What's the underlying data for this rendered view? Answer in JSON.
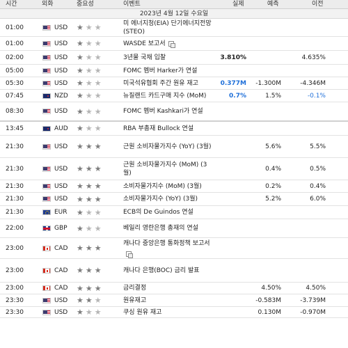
{
  "header": {
    "time": "시간",
    "currency": "외화",
    "importance": "중요성",
    "event": "이벤트",
    "actual": "실제",
    "forecast": "예측",
    "previous": "이전"
  },
  "date_label": "2023년 4월 12일 수요일",
  "rows": [
    {
      "time": "01:00",
      "flag": "us",
      "currency": "USD",
      "stars": 1,
      "event": "미 에너지청(EIA) 단기에너지전망(STEO)",
      "actual": "",
      "actual_color": "black",
      "forecast": "",
      "previous": "",
      "previous_color": "black",
      "h": 26,
      "doc": false,
      "sep": false
    },
    {
      "time": "01:00",
      "flag": "us",
      "currency": "USD",
      "stars": 1,
      "event": "WASDE 보고서",
      "actual": "",
      "actual_color": "black",
      "forecast": "",
      "previous": "",
      "previous_color": "black",
      "h": 20,
      "doc": true,
      "sep": false
    },
    {
      "time": "02:00",
      "flag": "us",
      "currency": "USD",
      "stars": 1,
      "event": "3년물 국채 입찰",
      "actual": "3.810%",
      "actual_color": "black",
      "forecast": "",
      "previous": "4.635%",
      "previous_color": "black",
      "h": 20,
      "doc": false,
      "sep": false
    },
    {
      "time": "05:00",
      "flag": "us",
      "currency": "USD",
      "stars": 1,
      "event": "FOMC 멤버 Harker가 연설",
      "actual": "",
      "actual_color": "black",
      "forecast": "",
      "previous": "",
      "previous_color": "black",
      "h": 18,
      "doc": false,
      "sep": false
    },
    {
      "time": "05:30",
      "flag": "us",
      "currency": "USD",
      "stars": 1,
      "event": "미국석유협회 주간 원유 재고",
      "actual": "0.377M",
      "actual_color": "blue",
      "forecast": "-1.300M",
      "previous": "-4.346M",
      "previous_color": "black",
      "h": 18,
      "doc": false,
      "sep": false
    },
    {
      "time": "07:45",
      "flag": "nz",
      "currency": "NZD",
      "stars": 1,
      "event": "뉴질랜드 카드구매 지수 (MoM)",
      "actual": "0.7%",
      "actual_color": "blue",
      "forecast": "1.5%",
      "previous": "-0.1%",
      "previous_color": "blue",
      "h": 18,
      "doc": false,
      "sep": false
    },
    {
      "time": "08:30",
      "flag": "us",
      "currency": "USD",
      "stars": 1,
      "event": "FOMC 멤버 Kashkari가 연설",
      "actual": "",
      "actual_color": "black",
      "forecast": "",
      "previous": "",
      "previous_color": "black",
      "h": 28,
      "doc": false,
      "sep": true
    },
    {
      "time": "13:45",
      "flag": "au",
      "currency": "AUD",
      "stars": 1,
      "event": "RBA 부총재 Bullock 연설",
      "actual": "",
      "actual_color": "black",
      "forecast": "",
      "previous": "",
      "previous_color": "black",
      "h": 20,
      "doc": false,
      "sep": false
    },
    {
      "time": "21:30",
      "flag": "us",
      "currency": "USD",
      "stars": 3,
      "event": "근원 소비자물가지수 (YoY) (3월)",
      "actual": "",
      "actual_color": "black",
      "forecast": "5.6%",
      "previous": "5.5%",
      "previous_color": "black",
      "h": 32,
      "doc": false,
      "sep": false
    },
    {
      "time": "21:30",
      "flag": "us",
      "currency": "USD",
      "stars": 3,
      "event": "근원 소비자물가지수 (MoM) (3월)",
      "actual": "",
      "actual_color": "black",
      "forecast": "0.4%",
      "previous": "0.5%",
      "previous_color": "black",
      "h": 32,
      "doc": false,
      "sep": false
    },
    {
      "time": "21:30",
      "flag": "us",
      "currency": "USD",
      "stars": 3,
      "event": "소비자물가지수 (MoM) (3월)",
      "actual": "",
      "actual_color": "black",
      "forecast": "0.2%",
      "previous": "0.4%",
      "previous_color": "black",
      "h": 18,
      "doc": false,
      "sep": false
    },
    {
      "time": "21:30",
      "flag": "us",
      "currency": "USD",
      "stars": 3,
      "event": "소비자물가지수 (YoY) (3월)",
      "actual": "",
      "actual_color": "black",
      "forecast": "5.2%",
      "previous": "6.0%",
      "previous_color": "black",
      "h": 19,
      "doc": false,
      "sep": false
    },
    {
      "time": "21:30",
      "flag": "eu",
      "currency": "EUR",
      "stars": 1,
      "event": "ECB의 De Guindos 연설",
      "actual": "",
      "actual_color": "black",
      "forecast": "",
      "previous": "",
      "previous_color": "black",
      "h": 19,
      "doc": false,
      "sep": false
    },
    {
      "time": "22:00",
      "flag": "gb",
      "currency": "GBP",
      "stars": 1,
      "event": "베일리 영란은행 총재의 연설",
      "actual": "",
      "actual_color": "black",
      "forecast": "",
      "previous": "",
      "previous_color": "black",
      "h": 27,
      "doc": false,
      "sep": false
    },
    {
      "time": "23:00",
      "flag": "ca",
      "currency": "CAD",
      "stars": 3,
      "event": "캐나다 중앙은행 통화정책 보고서",
      "actual": "",
      "actual_color": "black",
      "forecast": "",
      "previous": "",
      "previous_color": "black",
      "h": 30,
      "doc": true,
      "sep": false
    },
    {
      "time": "23:00",
      "flag": "ca",
      "currency": "CAD",
      "stars": 3,
      "event": "캐나다 은행(BOC) 금리 발표",
      "actual": "",
      "actual_color": "black",
      "forecast": "",
      "previous": "",
      "previous_color": "black",
      "h": 34,
      "doc": false,
      "sep": false
    },
    {
      "time": "23:00",
      "flag": "ca",
      "currency": "CAD",
      "stars": 3,
      "event": "금리결정",
      "actual": "",
      "actual_color": "black",
      "forecast": "4.50%",
      "previous": "4.50%",
      "previous_color": "black",
      "h": 17,
      "doc": false,
      "sep": false
    },
    {
      "time": "23:30",
      "flag": "us",
      "currency": "USD",
      "stars": 2,
      "event": "원유재고",
      "actual": "",
      "actual_color": "black",
      "forecast": "-0.583M",
      "previous": "-3.739M",
      "previous_color": "black",
      "h": 18,
      "doc": false,
      "sep": false
    },
    {
      "time": "23:30",
      "flag": "us",
      "currency": "USD",
      "stars": 1,
      "event": "쿠싱 원유 재고",
      "actual": "",
      "actual_color": "black",
      "forecast": "0.130M",
      "previous": "-0.970M",
      "previous_color": "black",
      "h": 16,
      "doc": false,
      "sep": false
    }
  ]
}
